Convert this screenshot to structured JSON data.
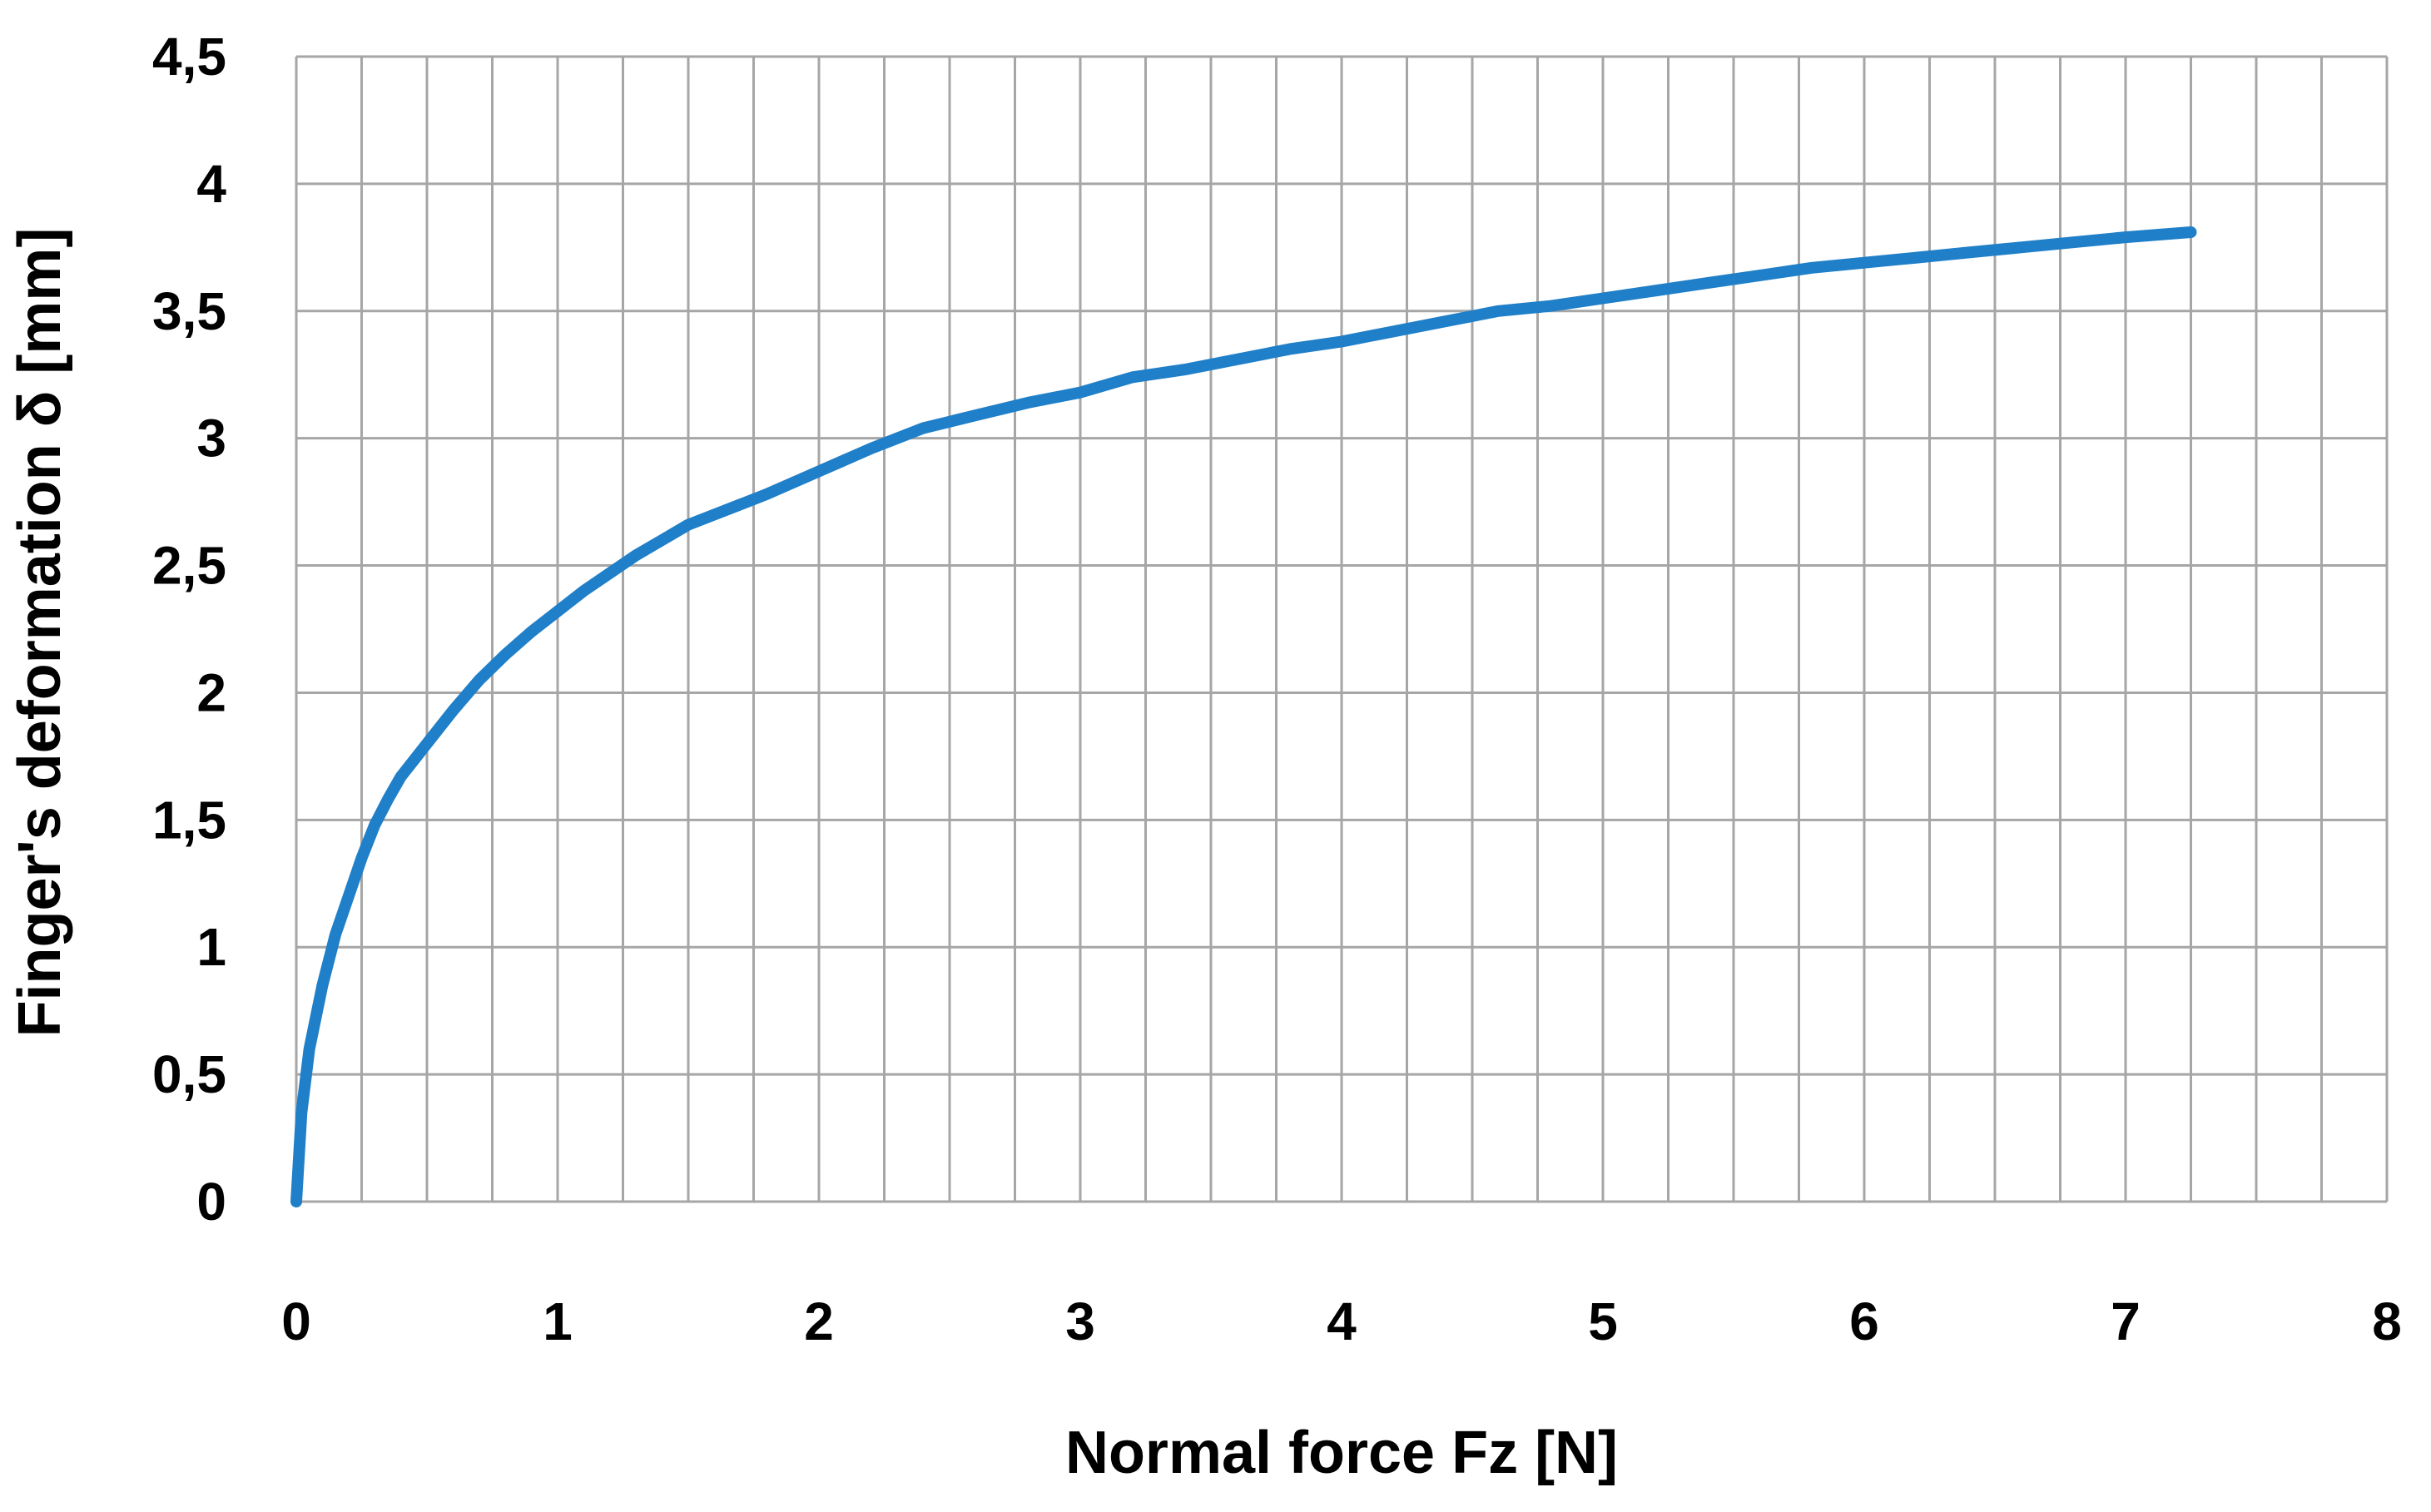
{
  "colors": {
    "series": "#1f7fc8",
    "grid": "#a6a6a6",
    "text": "#000000",
    "background": "#ffffff"
  },
  "chart_data": {
    "type": "line",
    "title": "",
    "xlabel": "Normal force Fz [N]",
    "ylabel": "Finger's deformation δ [mm]",
    "xlim": [
      0,
      8
    ],
    "ylim": [
      0,
      4.5
    ],
    "x_ticks": [
      0,
      1,
      2,
      3,
      4,
      5,
      6,
      7,
      8
    ],
    "x_tick_labels": [
      "0",
      "1",
      "2",
      "3",
      "4",
      "5",
      "6",
      "7",
      "8"
    ],
    "y_ticks": [
      0,
      0.5,
      1,
      1.5,
      2,
      2.5,
      3,
      3.5,
      4,
      4.5
    ],
    "y_tick_labels": [
      "0",
      "0,5",
      "1",
      "1,5",
      "2",
      "2,5",
      "3",
      "3,5",
      "4",
      "4,5"
    ],
    "minor_x_step": 0.25,
    "minor_y_step": 0.5,
    "grid": true,
    "legend": "none",
    "series": [
      {
        "x": [
          0.0,
          0.02,
          0.05,
          0.1,
          0.15,
          0.2,
          0.25,
          0.3,
          0.35,
          0.4,
          0.5,
          0.6,
          0.7,
          0.8,
          0.9,
          1.0,
          1.1,
          1.2,
          1.3,
          1.4,
          1.5,
          1.6,
          1.8,
          2.0,
          2.2,
          2.4,
          2.6,
          2.8,
          3.0,
          3.2,
          3.4,
          3.6,
          3.8,
          4.0,
          4.2,
          4.4,
          4.6,
          4.8,
          5.0,
          5.2,
          5.4,
          5.6,
          5.8,
          6.0,
          6.2,
          6.4,
          6.6,
          6.8,
          7.0,
          7.25
        ],
        "y": [
          0.0,
          0.35,
          0.6,
          0.85,
          1.05,
          1.2,
          1.35,
          1.48,
          1.58,
          1.67,
          1.8,
          1.93,
          2.05,
          2.15,
          2.24,
          2.32,
          2.4,
          2.47,
          2.54,
          2.6,
          2.66,
          2.7,
          2.78,
          2.87,
          2.96,
          3.04,
          3.09,
          3.14,
          3.18,
          3.24,
          3.27,
          3.31,
          3.35,
          3.38,
          3.42,
          3.46,
          3.5,
          3.52,
          3.55,
          3.58,
          3.61,
          3.64,
          3.67,
          3.69,
          3.71,
          3.73,
          3.75,
          3.77,
          3.79,
          3.81
        ]
      }
    ]
  }
}
